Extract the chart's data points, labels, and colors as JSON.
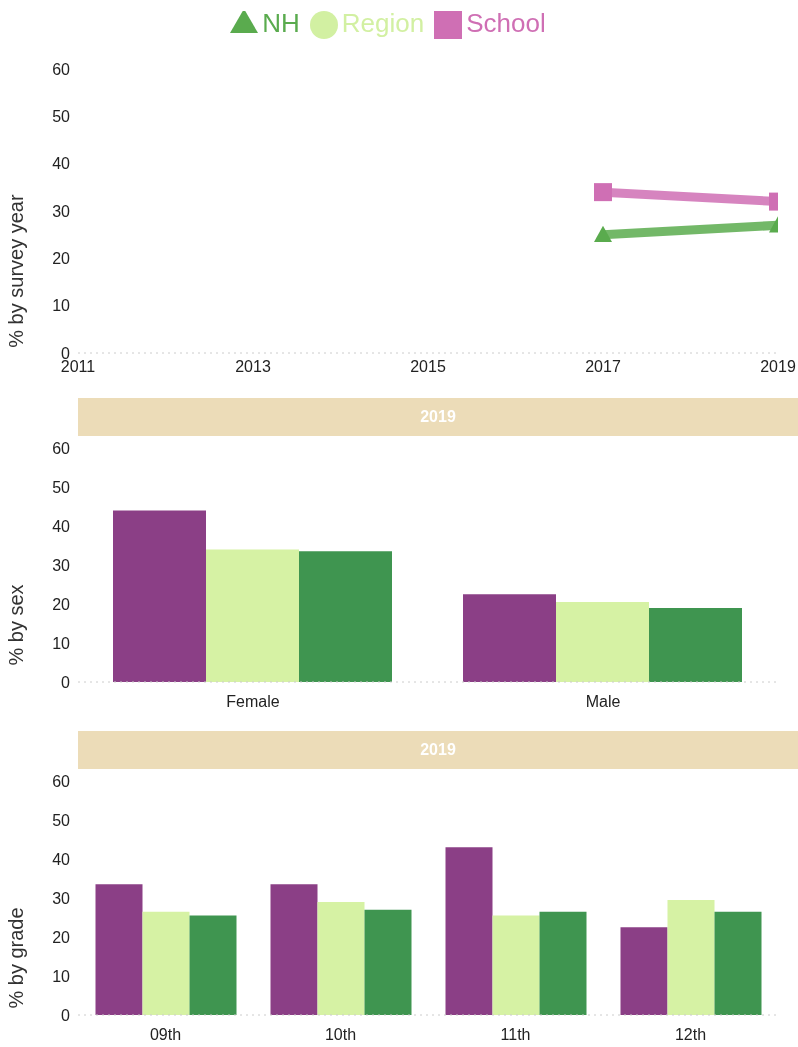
{
  "chart_data": [
    {
      "type": "line",
      "ylabel": "% by survey year",
      "x": [
        2017,
        2019
      ],
      "xlim": [
        2011,
        2019
      ],
      "xticks": [
        2011,
        2013,
        2015,
        2017,
        2019
      ],
      "ylim": [
        0,
        60
      ],
      "yticks": [
        0,
        10,
        20,
        30,
        40,
        50,
        60
      ],
      "legend": "top",
      "grid": false,
      "series": [
        {
          "name": "School",
          "color": "#cf6fb4",
          "marker": "square",
          "values": [
            34,
            32
          ]
        },
        {
          "name": "Region",
          "color": "#d2f0a2",
          "marker": "circle",
          "values": [
            null,
            null
          ]
        },
        {
          "name": "NH",
          "color": "#5aab4e",
          "marker": "triangle",
          "values": [
            25,
            27
          ]
        }
      ]
    },
    {
      "type": "bar",
      "title": "2019",
      "ylabel": "% by sex",
      "categories": [
        "Female",
        "Male"
      ],
      "ylim": [
        0,
        60
      ],
      "yticks": [
        0,
        10,
        20,
        30,
        40,
        50,
        60
      ],
      "legend": false,
      "grid": false,
      "series": [
        {
          "color": "#8b3f86",
          "values": [
            44,
            22.5
          ]
        },
        {
          "color": "#d6f2a4",
          "values": [
            34,
            20.5
          ]
        },
        {
          "color": "#3f9550",
          "values": [
            33.5,
            19
          ]
        }
      ]
    },
    {
      "type": "bar",
      "title": "2019",
      "ylabel": "% by grade",
      "categories": [
        "09th",
        "10th",
        "11th",
        "12th"
      ],
      "ylim": [
        0,
        60
      ],
      "yticks": [
        0,
        10,
        20,
        30,
        40,
        50,
        60
      ],
      "legend": false,
      "grid": false,
      "series": [
        {
          "color": "#8b3f86",
          "values": [
            33.5,
            33.5,
            43,
            22.5
          ]
        },
        {
          "color": "#d6f2a4",
          "values": [
            26.5,
            29,
            25.5,
            29.5
          ]
        },
        {
          "color": "#3f9550",
          "values": [
            25.5,
            27,
            26.5,
            26.5
          ]
        }
      ]
    }
  ]
}
